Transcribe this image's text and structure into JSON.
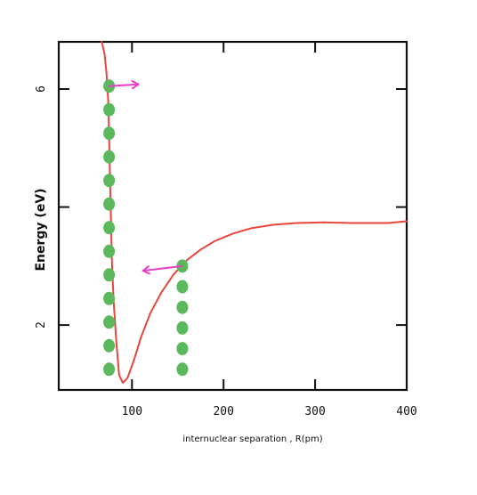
{
  "chart_data": {
    "type": "line",
    "ylabel": "Energy (eV)",
    "xlabel": "internuclear separation , R(pm)",
    "x_ticks": [
      "100",
      "200",
      "300",
      "400"
    ],
    "y_ticks": [
      "2",
      "6"
    ],
    "xlim": [
      20,
      400
    ],
    "ylim": [
      0.9,
      6.8
    ],
    "grid": false,
    "colors": {
      "curve": "#e8453c",
      "points": "#5cb85c",
      "arrow": "#e83fc8",
      "axis": "#111111"
    },
    "series": [
      {
        "values_x": [
          67,
          70,
          72,
          74,
          75,
          76,
          77,
          78,
          80,
          83,
          86,
          90,
          95,
          102,
          110,
          120,
          132,
          145,
          160,
          175,
          190,
          210,
          230,
          255,
          280,
          310,
          340,
          360,
          380,
          400
        ],
        "values_y": [
          6.8,
          6.6,
          6.3,
          5.8,
          5.2,
          4.5,
          3.8,
          3.1,
          2.4,
          1.7,
          1.15,
          1.02,
          1.1,
          1.4,
          1.8,
          2.2,
          2.55,
          2.85,
          3.1,
          3.28,
          3.42,
          3.55,
          3.64,
          3.7,
          3.73,
          3.74,
          3.73,
          3.73,
          3.73,
          3.76
        ]
      }
    ],
    "point_columns": [
      {
        "x": 75,
        "y": [
          6.05,
          5.65,
          5.25,
          4.85,
          4.45,
          4.05,
          3.65,
          3.25,
          2.85,
          2.45,
          2.05,
          1.65,
          1.25
        ]
      },
      {
        "x": 155,
        "y": [
          3.0,
          2.65,
          2.3,
          1.95,
          1.6,
          1.25
        ]
      }
    ],
    "arrows": [
      {
        "from": [
          75,
          6.05
        ],
        "to": [
          107,
          6.08
        ]
      },
      {
        "from": [
          155,
          3.0
        ],
        "to": [
          112,
          2.92
        ]
      }
    ]
  }
}
